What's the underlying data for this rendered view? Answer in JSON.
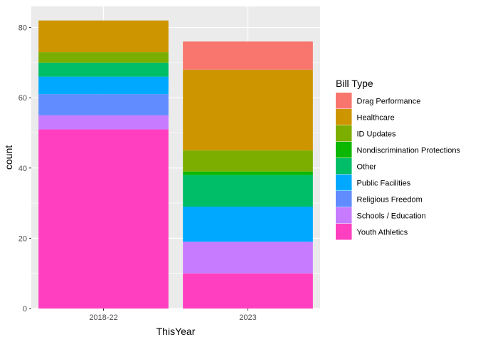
{
  "chart_data": {
    "type": "bar",
    "stacked": true,
    "categories": [
      "2018-22",
      "2023"
    ],
    "xlabel": "ThisYear",
    "ylabel": "count",
    "ylim": [
      0,
      86
    ],
    "yticks": [
      0,
      20,
      40,
      60,
      80
    ],
    "grid": true,
    "legend": {
      "title": "Bill Type",
      "position": "right"
    },
    "series": [
      {
        "name": "Drag Performance",
        "color": "#F8766D",
        "values": [
          0,
          8
        ]
      },
      {
        "name": "Healthcare",
        "color": "#CD9600",
        "values": [
          9,
          23
        ]
      },
      {
        "name": "ID Updates",
        "color": "#7CAE00",
        "values": [
          3,
          6
        ]
      },
      {
        "name": "Nondiscrimination Protections",
        "color": "#0CB702",
        "values": [
          0,
          1
        ]
      },
      {
        "name": "Other",
        "color": "#00BE67",
        "values": [
          4,
          9
        ]
      },
      {
        "name": "Public Facilities",
        "color": "#00A9FF",
        "values": [
          5,
          10
        ]
      },
      {
        "name": "Religious Freedom",
        "color": "#618CFF",
        "values": [
          6,
          0
        ]
      },
      {
        "name": "Schools / Education",
        "color": "#C77CFF",
        "values": [
          4,
          9
        ]
      },
      {
        "name": "Youth Athletics",
        "color": "#FF3FBF",
        "values": [
          51,
          10
        ]
      }
    ]
  }
}
